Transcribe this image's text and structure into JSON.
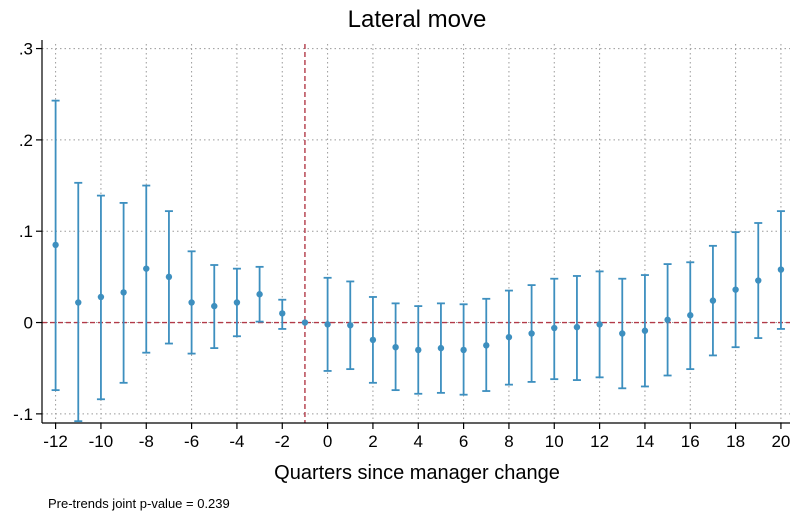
{
  "chart_data": {
    "type": "scatter",
    "title": "Lateral move",
    "xlabel": "Quarters since manager change",
    "ylabel": "",
    "xlim": [
      -12.6,
      20.4
    ],
    "ylim": [
      -0.11,
      0.305
    ],
    "xticks": [
      -12,
      -10,
      -8,
      -6,
      -4,
      -2,
      0,
      2,
      4,
      6,
      8,
      10,
      12,
      14,
      16,
      18,
      20
    ],
    "xtick_labels": [
      "-12",
      "-10",
      "-8",
      "-6",
      "-4",
      "-2",
      "0",
      "2",
      "4",
      "6",
      "8",
      "10",
      "12",
      "14",
      "16",
      "18",
      "20"
    ],
    "yticks": [
      -0.1,
      0,
      0.1,
      0.2,
      0.3
    ],
    "ytick_labels": [
      "-.1",
      "0",
      ".1",
      ".2",
      ".3"
    ],
    "grid": true,
    "reference_lines": {
      "vertical_x": -1,
      "horizontal_y": 0
    },
    "colors": {
      "series": "#3d8fbf",
      "reference": "#b23a48",
      "grid": "#9a9a9a",
      "axis": "#000000"
    },
    "series": [
      {
        "name": "",
        "x": [
          -12,
          -11,
          -10,
          -9,
          -8,
          -7,
          -6,
          -5,
          -4,
          -3,
          -2,
          -1,
          0,
          1,
          2,
          3,
          4,
          5,
          6,
          7,
          8,
          9,
          10,
          11,
          12,
          13,
          14,
          15,
          16,
          17,
          18,
          19,
          20
        ],
        "y": [
          0.085,
          0.022,
          0.028,
          0.033,
          0.059,
          0.05,
          0.022,
          0.018,
          0.022,
          0.031,
          0.01,
          0,
          -0.002,
          -0.003,
          -0.019,
          -0.027,
          -0.03,
          -0.028,
          -0.03,
          -0.025,
          -0.016,
          -0.012,
          -0.006,
          -0.005,
          -0.002,
          -0.012,
          -0.009,
          0.003,
          0.008,
          0.024,
          0.036,
          0.046,
          0.058
        ],
        "ci_low": [
          -0.074,
          -0.108,
          -0.084,
          -0.066,
          -0.033,
          -0.023,
          -0.034,
          -0.028,
          -0.015,
          0.001,
          -0.007,
          null,
          -0.053,
          -0.051,
          -0.066,
          -0.074,
          -0.078,
          -0.077,
          -0.079,
          -0.075,
          -0.068,
          -0.065,
          -0.062,
          -0.063,
          -0.06,
          -0.072,
          -0.07,
          -0.058,
          -0.051,
          -0.036,
          -0.027,
          -0.017,
          -0.007
        ],
        "ci_high": [
          0.243,
          0.153,
          0.139,
          0.131,
          0.15,
          0.122,
          0.078,
          0.063,
          0.059,
          0.061,
          0.025,
          null,
          0.049,
          0.045,
          0.028,
          0.021,
          0.018,
          0.021,
          0.02,
          0.026,
          0.035,
          0.041,
          0.048,
          0.051,
          0.056,
          0.048,
          0.052,
          0.064,
          0.066,
          0.084,
          0.099,
          0.109,
          0.122
        ]
      }
    ]
  },
  "note": "Pre-trends joint p-value = 0.239"
}
